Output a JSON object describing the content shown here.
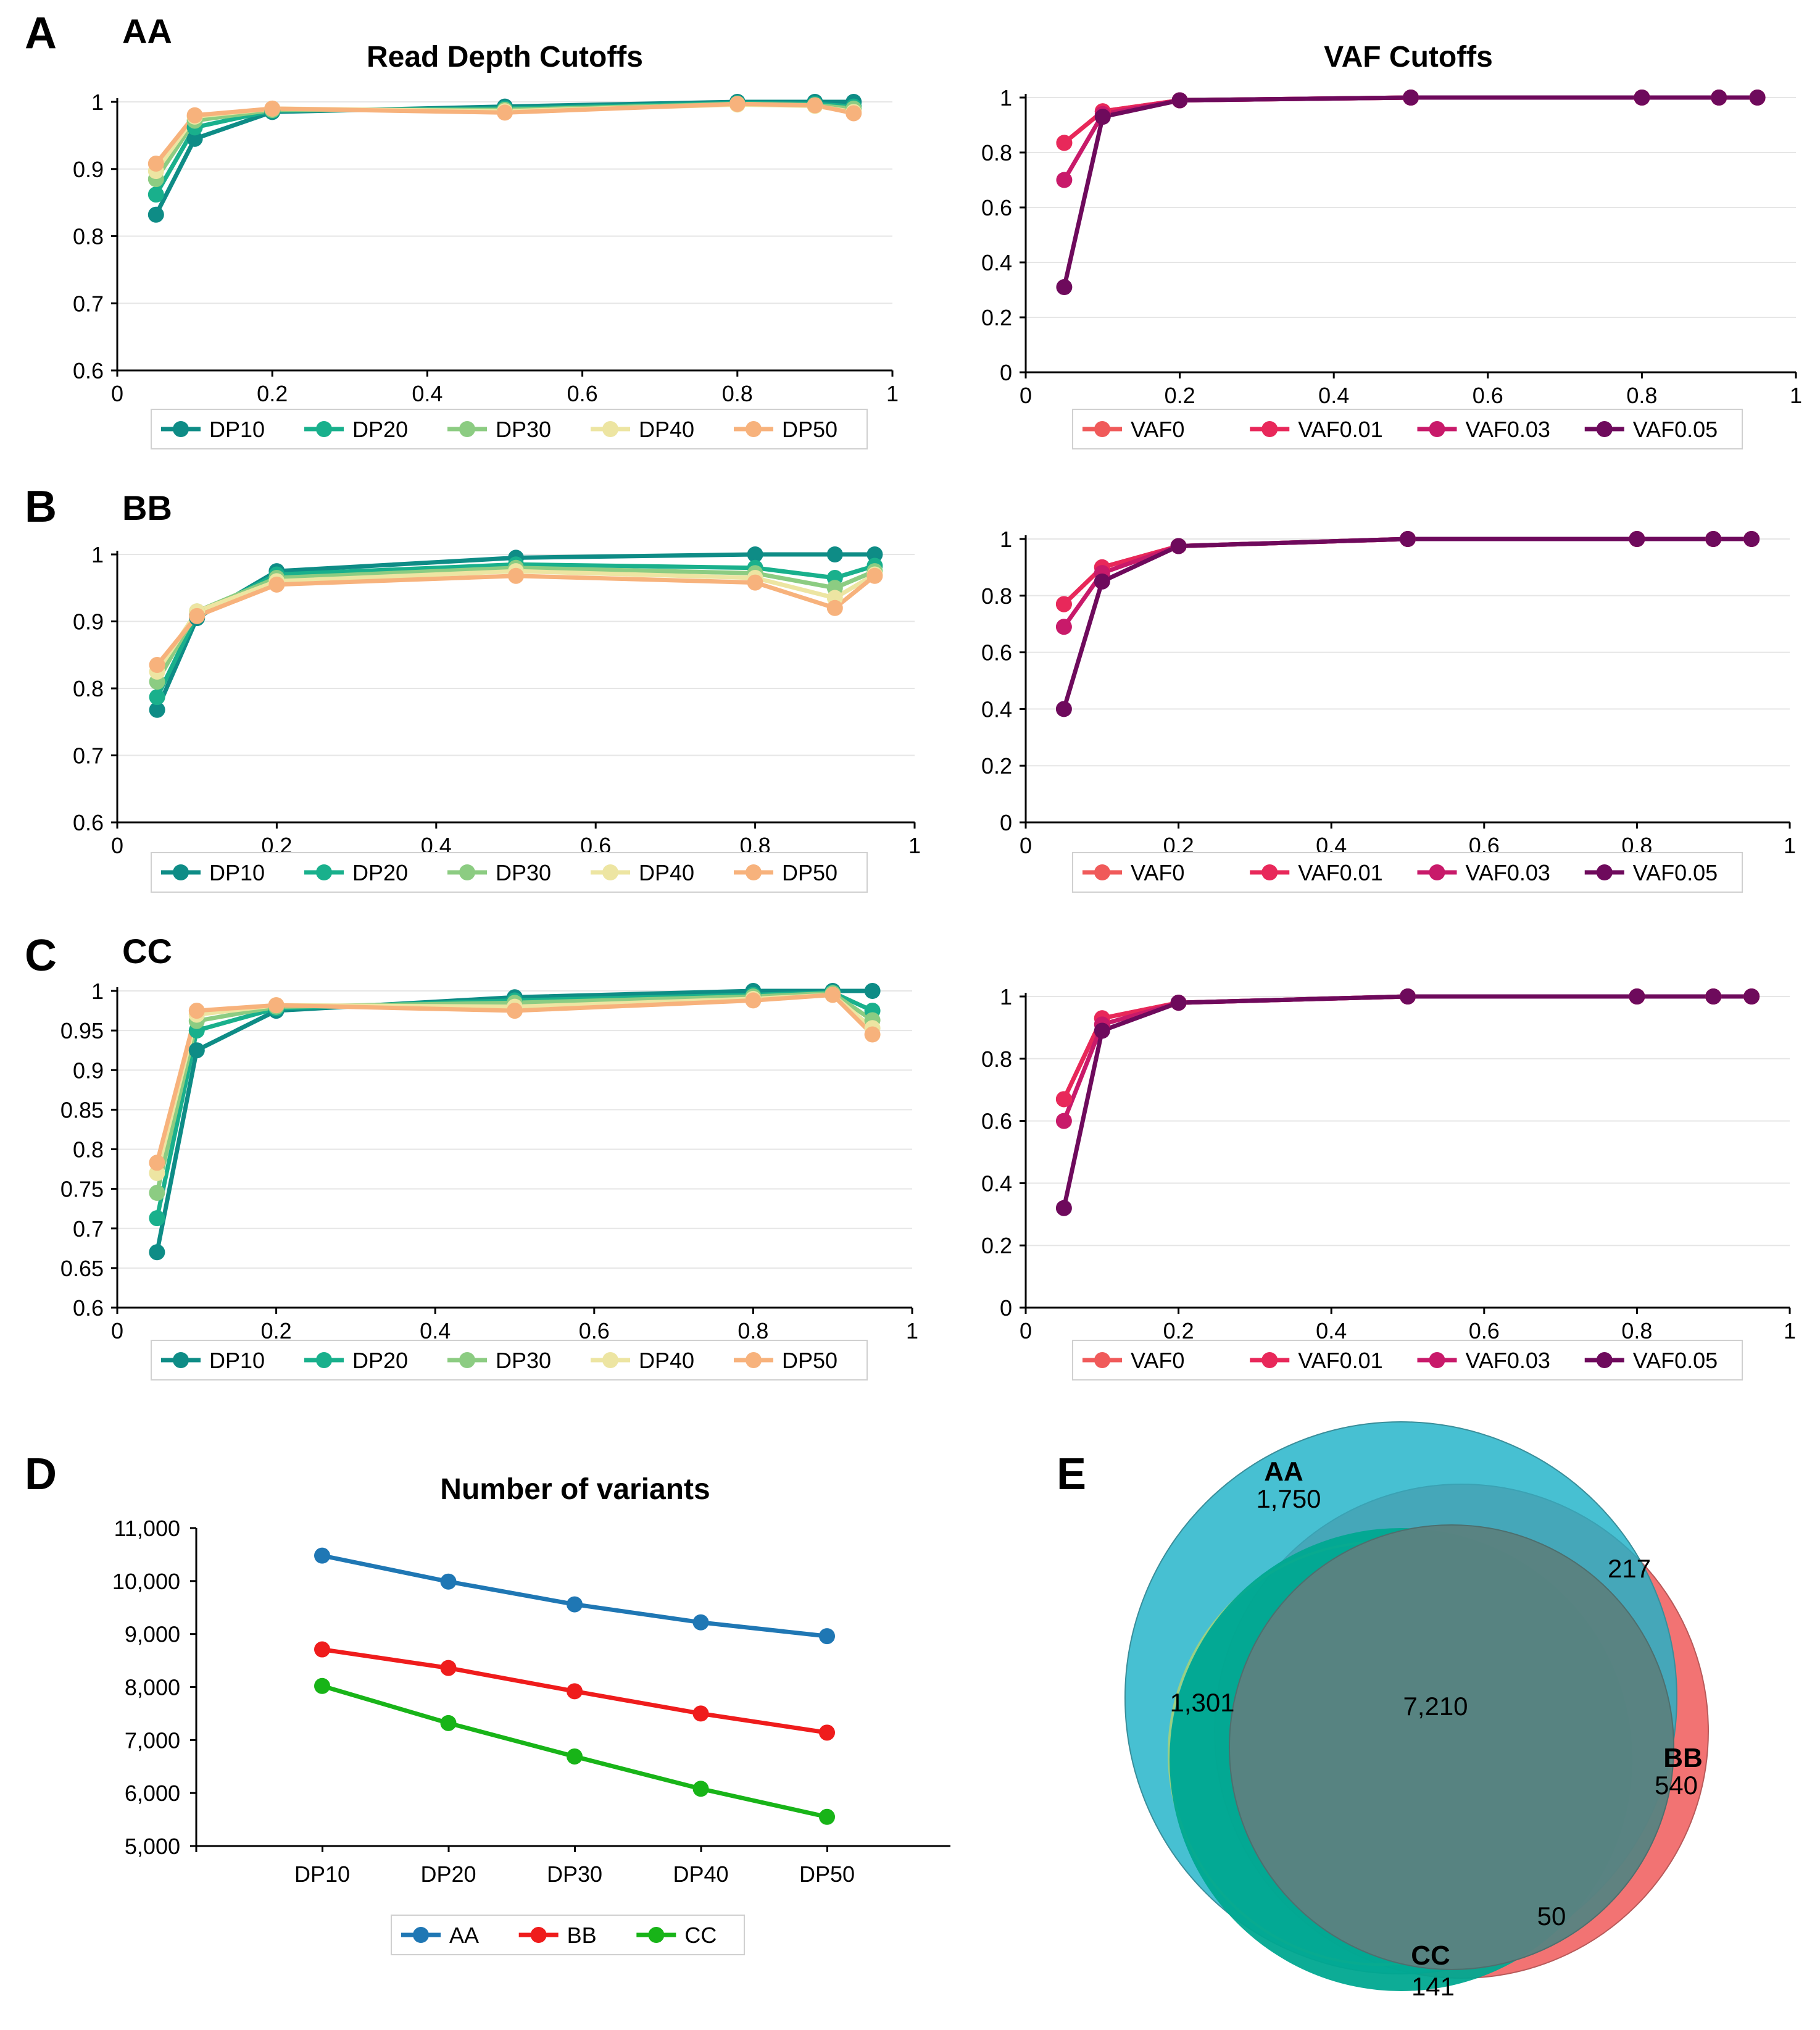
{
  "panel_labels": [
    "A",
    "B",
    "C",
    "D",
    "E"
  ],
  "colors": {
    "DP10": "#0e8c86",
    "DP20": "#19b08c",
    "DP30": "#8ccc82",
    "DP40": "#ede5a2",
    "DP50": "#f7b27c",
    "VAF0": "#f05a5a",
    "VAF0.01": "#e8285a",
    "VAF0.03": "#c81a6a",
    "VAF0.05": "#6e0a5c",
    "AA": "#1f77b4",
    "BB": "#ef1c1c",
    "CC": "#18b418",
    "venn_AA": "#1fb2c8",
    "venn_BB": "#f06060",
    "venn_CC": "#00a890",
    "venn_core": "#5a8280"
  },
  "chart_data": [
    {
      "id": "A_dp",
      "type": "line",
      "group_label": "AA",
      "title": "Read Depth Cutoffs",
      "xlim": [
        0,
        1
      ],
      "xticks": [
        0,
        0.2,
        0.4,
        0.6,
        0.8,
        1
      ],
      "xtick_labels": [
        "0",
        "0.2",
        "0.4",
        "0.6",
        "0.8",
        "1"
      ],
      "ylim": [
        0.6,
        1
      ],
      "yticks": [
        0.6,
        0.7,
        0.8,
        0.9,
        1
      ],
      "ytick_labels": [
        "0.6",
        "0.7",
        "0.8",
        "0.9",
        "1"
      ],
      "x": [
        0.05,
        0.1,
        0.2,
        0.5,
        0.8,
        0.9,
        0.95
      ],
      "legend": [
        "DP10",
        "DP20",
        "DP30",
        "DP40",
        "DP50"
      ],
      "series": [
        {
          "name": "DP10",
          "values": [
            0.832,
            0.945,
            0.985,
            0.993,
            1.0,
            1.0,
            1.0
          ]
        },
        {
          "name": "DP20",
          "values": [
            0.862,
            0.962,
            0.987,
            0.99,
            0.998,
            0.997,
            0.993
          ]
        },
        {
          "name": "DP30",
          "values": [
            0.885,
            0.972,
            0.988,
            0.988,
            0.997,
            0.995,
            0.99
          ]
        },
        {
          "name": "DP40",
          "values": [
            0.897,
            0.978,
            0.99,
            0.986,
            0.996,
            0.994,
            0.985
          ]
        },
        {
          "name": "DP50",
          "values": [
            0.908,
            0.98,
            0.99,
            0.984,
            0.997,
            0.995,
            0.983
          ]
        }
      ]
    },
    {
      "id": "A_vaf",
      "type": "line",
      "title": "VAF Cutoffs",
      "xlim": [
        0,
        1
      ],
      "xticks": [
        0,
        0.2,
        0.4,
        0.6,
        0.8,
        1
      ],
      "xtick_labels": [
        "0",
        "0.2",
        "0.4",
        "0.6",
        "0.8",
        "1"
      ],
      "ylim": [
        0,
        1
      ],
      "yticks": [
        0,
        0.2,
        0.4,
        0.6,
        0.8,
        1
      ],
      "ytick_labels": [
        "0",
        "0.2",
        "0.4",
        "0.6",
        "0.8",
        "1"
      ],
      "x": [
        0.05,
        0.1,
        0.2,
        0.5,
        0.8,
        0.9,
        0.95
      ],
      "legend": [
        "VAF0",
        "VAF0.01",
        "VAF0.03",
        "VAF0.05"
      ],
      "series": [
        {
          "name": "VAF0",
          "values": [
            0.835,
            0.95,
            0.99,
            1.0,
            1.0,
            1.0,
            1.0
          ]
        },
        {
          "name": "VAF0.01",
          "values": [
            0.835,
            0.95,
            0.99,
            1.0,
            1.0,
            1.0,
            1.0
          ]
        },
        {
          "name": "VAF0.03",
          "values": [
            0.7,
            0.94,
            0.99,
            1.0,
            1.0,
            1.0,
            1.0
          ]
        },
        {
          "name": "VAF0.05",
          "values": [
            0.31,
            0.93,
            0.99,
            1.0,
            1.0,
            1.0,
            1.0
          ]
        }
      ]
    },
    {
      "id": "B_dp",
      "type": "line",
      "group_label": "BB",
      "title": "",
      "xlim": [
        0,
        1
      ],
      "xticks": [
        0,
        0.2,
        0.4,
        0.6,
        0.8,
        1
      ],
      "xtick_labels": [
        "0",
        "0.2",
        "0.4",
        "0.6",
        "0.8",
        "1"
      ],
      "ylim": [
        0.6,
        1
      ],
      "yticks": [
        0.6,
        0.7,
        0.8,
        0.9,
        1
      ],
      "ytick_labels": [
        "0.6",
        "0.7",
        "0.8",
        "0.9",
        "1"
      ],
      "x": [
        0.05,
        0.1,
        0.2,
        0.5,
        0.8,
        0.9,
        0.95
      ],
      "legend": [
        "DP10",
        "DP20",
        "DP30",
        "DP40",
        "DP50"
      ],
      "series": [
        {
          "name": "DP10",
          "values": [
            0.768,
            0.905,
            0.975,
            0.995,
            1.0,
            1.0,
            1.0
          ]
        },
        {
          "name": "DP20",
          "values": [
            0.787,
            0.91,
            0.97,
            0.985,
            0.98,
            0.965,
            0.983
          ]
        },
        {
          "name": "DP30",
          "values": [
            0.81,
            0.915,
            0.965,
            0.98,
            0.972,
            0.95,
            0.975
          ]
        },
        {
          "name": "DP40",
          "values": [
            0.825,
            0.915,
            0.96,
            0.975,
            0.965,
            0.935,
            0.97
          ]
        },
        {
          "name": "DP50",
          "values": [
            0.835,
            0.908,
            0.955,
            0.968,
            0.958,
            0.92,
            0.968
          ]
        }
      ]
    },
    {
      "id": "B_vaf",
      "type": "line",
      "title": "",
      "xlim": [
        0,
        1
      ],
      "xticks": [
        0,
        0.2,
        0.4,
        0.6,
        0.8,
        1
      ],
      "xtick_labels": [
        "0",
        "0.2",
        "0.4",
        "0.6",
        "0.8",
        "1"
      ],
      "ylim": [
        0,
        1
      ],
      "yticks": [
        0,
        0.2,
        0.4,
        0.6,
        0.8,
        1
      ],
      "ytick_labels": [
        "0",
        "0.2",
        "0.4",
        "0.6",
        "0.8",
        "1"
      ],
      "x": [
        0.05,
        0.1,
        0.2,
        0.5,
        0.8,
        0.9,
        0.95
      ],
      "legend": [
        "VAF0",
        "VAF0.01",
        "VAF0.03",
        "VAF0.05"
      ],
      "series": [
        {
          "name": "VAF0",
          "values": [
            0.77,
            0.9,
            0.975,
            1.0,
            1.0,
            1.0,
            1.0
          ]
        },
        {
          "name": "VAF0.01",
          "values": [
            0.77,
            0.9,
            0.975,
            1.0,
            1.0,
            1.0,
            1.0
          ]
        },
        {
          "name": "VAF0.03",
          "values": [
            0.69,
            0.88,
            0.975,
            1.0,
            1.0,
            1.0,
            1.0
          ]
        },
        {
          "name": "VAF0.05",
          "values": [
            0.4,
            0.85,
            0.975,
            1.0,
            1.0,
            1.0,
            1.0
          ]
        }
      ]
    },
    {
      "id": "C_dp",
      "type": "line",
      "group_label": "CC",
      "title": "",
      "xlim": [
        0,
        1
      ],
      "xticks": [
        0,
        0.2,
        0.4,
        0.6,
        0.8,
        1
      ],
      "xtick_labels": [
        "0",
        "0.2",
        "0.4",
        "0.6",
        "0.8",
        "1"
      ],
      "ylim": [
        0.6,
        1
      ],
      "yticks": [
        0.6,
        0.65,
        0.7,
        0.75,
        0.8,
        0.85,
        0.9,
        0.95,
        1
      ],
      "ytick_labels": [
        "0.6",
        "0.65",
        "0.7",
        "0.75",
        "0.8",
        "0.85",
        "0.9",
        "0.95",
        "1"
      ],
      "x": [
        0.05,
        0.1,
        0.2,
        0.5,
        0.8,
        0.9,
        0.95
      ],
      "legend": [
        "DP10",
        "DP20",
        "DP30",
        "DP40",
        "DP50"
      ],
      "series": [
        {
          "name": "DP10",
          "values": [
            0.67,
            0.925,
            0.975,
            0.992,
            1.0,
            1.0,
            1.0
          ]
        },
        {
          "name": "DP20",
          "values": [
            0.713,
            0.95,
            0.978,
            0.988,
            0.995,
            0.998,
            0.975
          ]
        },
        {
          "name": "DP30",
          "values": [
            0.745,
            0.962,
            0.98,
            0.985,
            0.993,
            0.997,
            0.963
          ]
        },
        {
          "name": "DP40",
          "values": [
            0.77,
            0.97,
            0.982,
            0.98,
            0.99,
            0.995,
            0.953
          ]
        },
        {
          "name": "DP50",
          "values": [
            0.783,
            0.975,
            0.982,
            0.975,
            0.988,
            0.995,
            0.945
          ]
        }
      ]
    },
    {
      "id": "C_vaf",
      "type": "line",
      "title": "",
      "xlim": [
        0,
        1
      ],
      "xticks": [
        0,
        0.2,
        0.4,
        0.6,
        0.8,
        1
      ],
      "xtick_labels": [
        "0",
        "0.2",
        "0.4",
        "0.6",
        "0.8",
        "1"
      ],
      "ylim": [
        0,
        1
      ],
      "yticks": [
        0,
        0.2,
        0.4,
        0.6,
        0.8,
        1
      ],
      "ytick_labels": [
        "0",
        "0.2",
        "0.4",
        "0.6",
        "0.8",
        "1"
      ],
      "x": [
        0.05,
        0.1,
        0.2,
        0.5,
        0.8,
        0.9,
        0.95
      ],
      "legend": [
        "VAF0",
        "VAF0.01",
        "VAF0.03",
        "VAF0.05"
      ],
      "series": [
        {
          "name": "VAF0",
          "values": [
            0.67,
            0.93,
            0.98,
            1.0,
            1.0,
            1.0,
            1.0
          ]
        },
        {
          "name": "VAF0.01",
          "values": [
            0.67,
            0.93,
            0.98,
            1.0,
            1.0,
            1.0,
            1.0
          ]
        },
        {
          "name": "VAF0.03",
          "values": [
            0.6,
            0.91,
            0.98,
            1.0,
            1.0,
            1.0,
            1.0
          ]
        },
        {
          "name": "VAF0.05",
          "values": [
            0.32,
            0.89,
            0.98,
            1.0,
            1.0,
            1.0,
            1.0
          ]
        }
      ]
    },
    {
      "id": "D",
      "type": "line",
      "title": "Number of variants",
      "categories": [
        "DP10",
        "DP20",
        "DP30",
        "DP40",
        "DP50"
      ],
      "ylim": [
        5000,
        11000
      ],
      "yticks": [
        5000,
        6000,
        7000,
        8000,
        9000,
        10000,
        11000
      ],
      "ytick_labels": [
        "5,000",
        "6,000",
        "7,000",
        "8,000",
        "9,000",
        "10,000",
        "11,000"
      ],
      "legend": [
        "AA",
        "BB",
        "CC"
      ],
      "series": [
        {
          "name": "AA",
          "values": [
            10480,
            9990,
            9560,
            9220,
            8960
          ]
        },
        {
          "name": "BB",
          "values": [
            8710,
            8360,
            7920,
            7500,
            7140
          ]
        },
        {
          "name": "CC",
          "values": [
            8020,
            7320,
            6690,
            6080,
            5550
          ]
        }
      ]
    }
  ],
  "venn": {
    "sets": [
      {
        "name": "AA",
        "count": "1,750"
      },
      {
        "name": "BB",
        "count": "540"
      },
      {
        "name": "CC",
        "count": "141"
      }
    ],
    "regions": {
      "AA_BB_CC": "7,210",
      "AA_CC": "1,301",
      "AA_BB": "217",
      "BB_CC": "50"
    }
  }
}
